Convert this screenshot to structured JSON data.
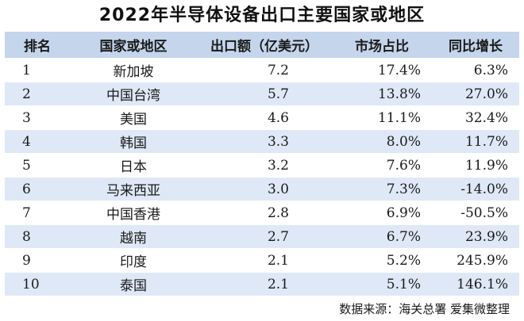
{
  "title": "2022年半导体设备出口主要国家或地区",
  "table": {
    "headers": [
      "排名",
      "国家或地区",
      "出口额（亿美元）",
      "市场占比",
      "同比增长"
    ],
    "rows": [
      {
        "rank": "1",
        "region": "新加坡",
        "amount": "7.2",
        "share": "17.4%",
        "growth": "6.3%"
      },
      {
        "rank": "2",
        "region": "中国台湾",
        "amount": "5.7",
        "share": "13.8%",
        "growth": "27.0%"
      },
      {
        "rank": "3",
        "region": "美国",
        "amount": "4.6",
        "share": "11.1%",
        "growth": "32.4%"
      },
      {
        "rank": "4",
        "region": "韩国",
        "amount": "3.3",
        "share": "8.0%",
        "growth": "11.7%"
      },
      {
        "rank": "5",
        "region": "日本",
        "amount": "3.2",
        "share": "7.6%",
        "growth": "11.9%"
      },
      {
        "rank": "6",
        "region": "马来西亚",
        "amount": "3.0",
        "share": "7.3%",
        "growth": "-14.0%"
      },
      {
        "rank": "7",
        "region": "中国香港",
        "amount": "2.8",
        "share": "6.9%",
        "growth": "-50.5%"
      },
      {
        "rank": "8",
        "region": "越南",
        "amount": "2.7",
        "share": "6.7%",
        "growth": "23.9%"
      },
      {
        "rank": "9",
        "region": "印度",
        "amount": "2.1",
        "share": "5.2%",
        "growth": "245.9%"
      },
      {
        "rank": "10",
        "region": "泰国",
        "amount": "2.1",
        "share": "5.1%",
        "growth": "146.1%"
      }
    ]
  },
  "source": "数据来源：海关总署  爱集微整理",
  "colors": {
    "header_bg": "#c4d5ec",
    "stripe_bg": "#dfe8f6",
    "row_bg": "#ffffff"
  }
}
